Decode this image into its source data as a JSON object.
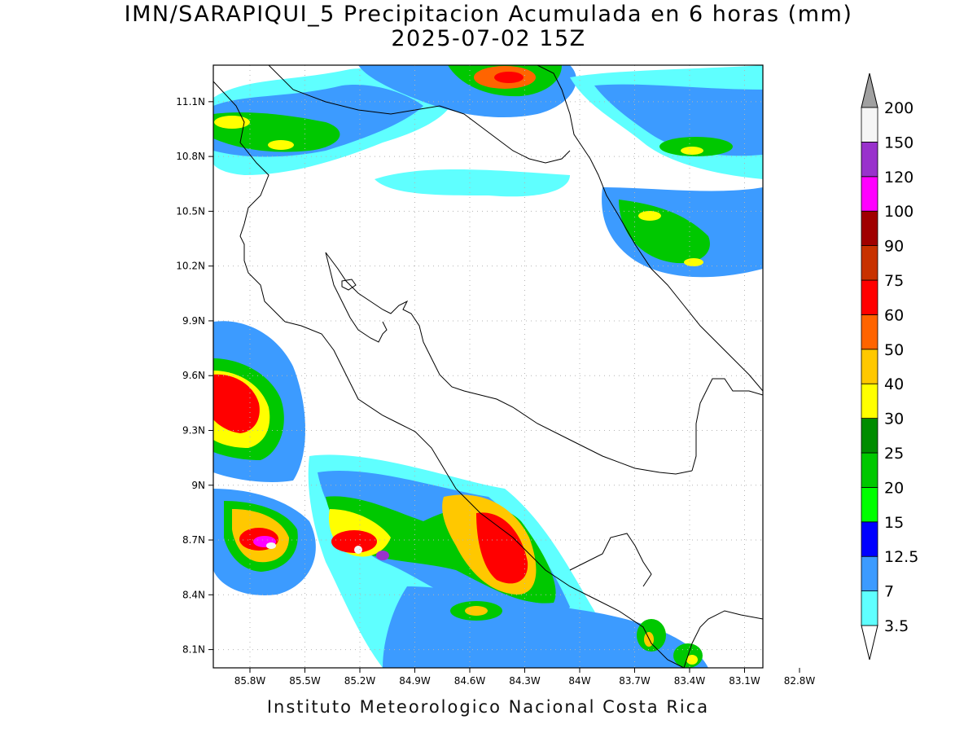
{
  "title": {
    "line1": "IMN/SARAPIQUI_5 Precipitacion Acumulada en 6 horas (mm)",
    "line2": "2025-07-02 15Z"
  },
  "footer": "Instituto Meteorologico Nacional Costa Rica",
  "map": {
    "lon_range": [
      -86.0,
      -83.0
    ],
    "lat_range": [
      8.0,
      11.3
    ],
    "lon_ticks": [
      "85.8W",
      "85.5W",
      "85.2W",
      "84.9W",
      "84.6W",
      "84.3W",
      "84W",
      "83.7W",
      "83.4W",
      "83.1W",
      "82.8W"
    ],
    "lat_ticks": [
      "11.1N",
      "10.8N",
      "10.5N",
      "10.2N",
      "9.9N",
      "9.6N",
      "9.3N",
      "9N",
      "8.7N",
      "8.4N",
      "8.1N"
    ],
    "grid": true
  },
  "colorbar": {
    "levels": [
      "3.5",
      "7",
      "12.5",
      "15",
      "20",
      "25",
      "30",
      "40",
      "50",
      "60",
      "75",
      "90",
      "100",
      "120",
      "150",
      "200"
    ],
    "colors": [
      "#5fffff",
      "#3c9bff",
      "#0000ff",
      "#00ff00",
      "#00c800",
      "#008c00",
      "#ffff00",
      "#ffc800",
      "#ff6400",
      "#ff0000",
      "#c83200",
      "#a00000",
      "#ff00ff",
      "#9932cc",
      "#f5f5f5",
      "#a0a0a0"
    ]
  }
}
